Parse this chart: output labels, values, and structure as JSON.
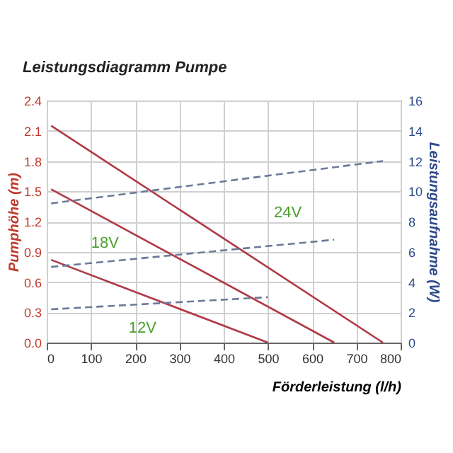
{
  "chart_data": {
    "type": "line",
    "title": "Leistungsdiagramm Pumpe",
    "xlabel": "Förderleistung (l/h)",
    "ylabel": "Pumphöhe (m)",
    "y2label": "Leistungsaufnahme (W)",
    "xlim": [
      0,
      800
    ],
    "xticks": [
      0,
      100,
      200,
      300,
      400,
      500,
      600,
      700,
      800
    ],
    "ylim": [
      0,
      2.4
    ],
    "yticks": [
      {
        "value": 0,
        "label": "0.0"
      },
      0.3,
      0.6,
      0.9,
      1.2,
      1.5,
      1.8,
      2.1,
      2.4
    ],
    "y2lim": [
      0,
      16
    ],
    "y2ticks": [
      0,
      2,
      4,
      6,
      8,
      10,
      12,
      14,
      16
    ],
    "grid": true,
    "marker": "none",
    "series": [
      {
        "color": "#b03a48",
        "x": [
          10,
          760
        ],
        "values": [
          2.15,
          0
        ],
        "line_style": "solid"
      },
      {
        "color": "#b03a48",
        "x": [
          10,
          650
        ],
        "values": [
          1.52,
          0
        ],
        "line_style": "solid"
      },
      {
        "color": "#b03a48",
        "x": [
          10,
          500
        ],
        "values": [
          0.82,
          0
        ],
        "line_style": "solid"
      },
      {
        "color": "#6b7a99",
        "x": [
          10,
          760
        ],
        "values": [
          9.2,
          12
        ],
        "line_style": "dashed",
        "axis": "y2"
      },
      {
        "color": "#6b7a99",
        "x": [
          10,
          650
        ],
        "values": [
          5,
          6.8
        ],
        "line_style": "dashed",
        "axis": "y2"
      },
      {
        "color": "#6b7a99",
        "x": [
          10,
          500
        ],
        "values": [
          2.2,
          3
        ],
        "line_style": "dashed",
        "axis": "y2"
      }
    ],
    "annotations": [
      "24V",
      "18V",
      "12V"
    ]
  }
}
